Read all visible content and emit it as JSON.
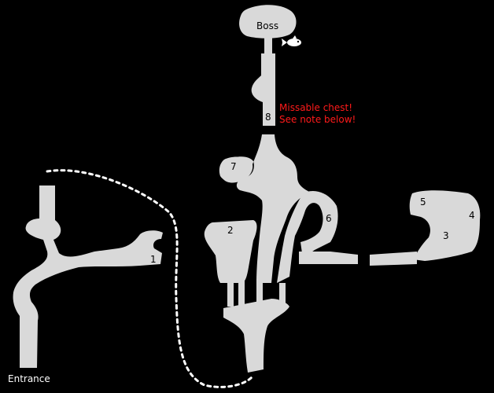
{
  "map": {
    "colors": {
      "background": "#000000",
      "room": "#d9d9d9",
      "label": "#000000",
      "warning": "#ff1a1a",
      "dotted_path": "#ffffff"
    },
    "labels": {
      "boss": "Boss",
      "entrance": "Entrance",
      "area_1": "1",
      "area_2": "2",
      "area_3": "3",
      "area_4": "4",
      "area_5": "5",
      "area_6": "6",
      "area_7": "7",
      "area_8": "8"
    },
    "note": {
      "line1": "Missable chest!",
      "line2": "See note below!"
    },
    "icons": {
      "boss_marker": "fish-icon"
    }
  }
}
